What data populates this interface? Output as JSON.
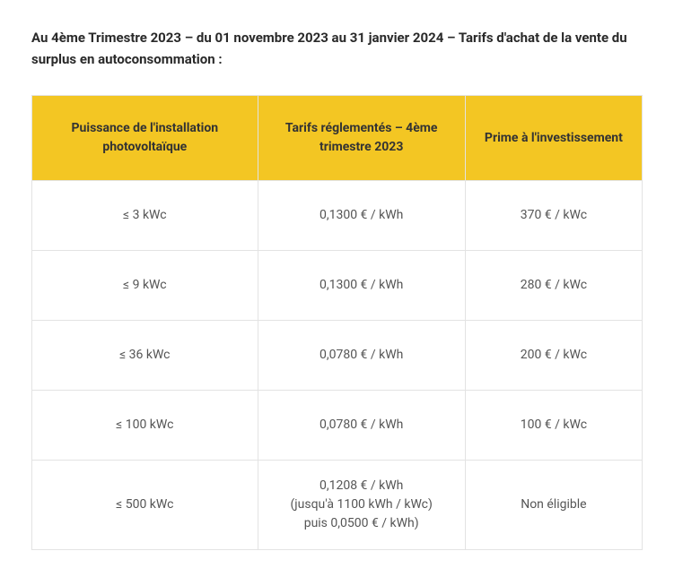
{
  "title": "Au 4ème Trimestre 2023 – du 01 novembre 2023 au 31 janvier 2024 – Tarifs d'achat de la vente du surplus en autoconsommation :",
  "colors": {
    "header_bg": "#f3c623",
    "border": "#e3e3e3",
    "text_heading": "#2a2a2a",
    "text_body": "#555555",
    "background": "#ffffff"
  },
  "table": {
    "columns": [
      "Puissance de l'installation photovoltaïque",
      "Tarifs réglementés – 4ème trimestre 2023",
      "Prime à l'investissement"
    ],
    "rows": [
      {
        "power": "≤ 3 kWc",
        "tariff": "0,1300 € / kWh",
        "bonus": "370 € / kWc"
      },
      {
        "power": "≤ 9 kWc",
        "tariff": "0,1300 € / kWh",
        "bonus": "280 € / kWc"
      },
      {
        "power": "≤ 36 kWc",
        "tariff": "0,0780 € / kWh",
        "bonus": "200 € / kWc"
      },
      {
        "power": "≤ 100 kWc",
        "tariff": "0,0780 € / kWh",
        "bonus": "100 € / kWc"
      },
      {
        "power": "≤ 500 kWc",
        "tariff": "0,1208 € / kWh\n(jusqu'à 1100 kWh / kWc)\npuis 0,0500 € / kWh)",
        "bonus": "Non éligible"
      }
    ]
  }
}
